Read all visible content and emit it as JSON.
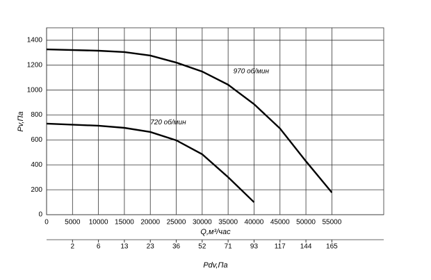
{
  "chart_data": {
    "type": "line",
    "xlabel": "Q,м³/час",
    "ylabel": "Pv,Па",
    "xlim": [
      0,
      65000
    ],
    "ylim": [
      0,
      1500
    ],
    "xticks": [
      0,
      5000,
      10000,
      15000,
      20000,
      25000,
      30000,
      35000,
      40000,
      45000,
      50000,
      55000
    ],
    "yticks": [
      0,
      200,
      400,
      600,
      800,
      1000,
      1200,
      1400
    ],
    "grid": true,
    "x2": {
      "label": "Pdv,Па",
      "ticks": [
        2,
        6,
        13,
        23,
        36,
        52,
        71,
        93,
        117,
        144,
        165
      ],
      "q": [
        5000,
        10000,
        15000,
        20000,
        25000,
        30000,
        35000,
        40000,
        45000,
        50000,
        55000
      ]
    },
    "series": [
      {
        "name": "970 об/мин",
        "color": "#000000",
        "x": [
          0,
          10000,
          15000,
          20000,
          25000,
          30000,
          35000,
          40000,
          45000,
          50000,
          55000
        ],
        "values": [
          1327,
          1316,
          1305,
          1277,
          1221,
          1149,
          1043,
          887,
          692,
          429,
          178
        ]
      },
      {
        "name": "720 об/мин",
        "color": "#000000",
        "x": [
          0,
          10000,
          15000,
          20000,
          25000,
          30000,
          35000,
          40000
        ],
        "values": [
          731,
          714,
          697,
          664,
          597,
          485,
          301,
          100
        ]
      }
    ]
  }
}
